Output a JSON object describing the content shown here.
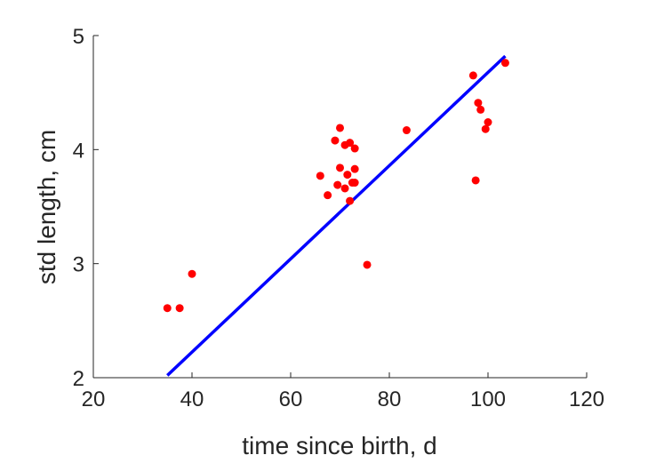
{
  "chart_data": {
    "type": "scatter",
    "xlabel": "time since birth, d",
    "ylabel": "std length, cm",
    "xlim": [
      20,
      120
    ],
    "ylim": [
      2,
      5
    ],
    "xticks": [
      "20",
      "40",
      "60",
      "80",
      "100",
      "120"
    ],
    "yticks": [
      "2",
      "3",
      "4",
      "5"
    ],
    "grid": false,
    "points": {
      "color": "#ff0000",
      "x": [
        35,
        37.5,
        40,
        66,
        67.5,
        69,
        69.5,
        70,
        70,
        71,
        71,
        71.5,
        72,
        72,
        72.5,
        73,
        73,
        73,
        75.5,
        83.5,
        97,
        97.5,
        98,
        98.5,
        99.5,
        100,
        103.5
      ],
      "y": [
        2.61,
        2.61,
        2.91,
        3.77,
        3.6,
        4.08,
        3.69,
        3.84,
        4.19,
        3.66,
        4.04,
        3.78,
        3.55,
        4.06,
        3.71,
        3.83,
        3.71,
        4.01,
        2.99,
        4.17,
        4.65,
        3.73,
        4.41,
        4.35,
        4.18,
        4.24,
        4.76
      ]
    },
    "fit_line": {
      "color": "#0000ff",
      "x": [
        35,
        103.5
      ],
      "y": [
        2.02,
        4.82
      ]
    }
  }
}
